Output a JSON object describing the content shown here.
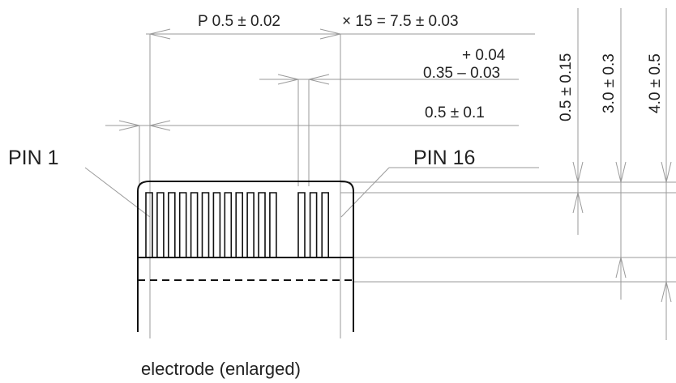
{
  "dimensions": {
    "pitch": "P 0.5 ± 0.02",
    "span": "× 15 = 7.5 ± 0.03",
    "pin_width_tol": "+ 0.04",
    "pin_width": "0.35 – 0.03",
    "end_margin": "0.5 ± 0.1",
    "pin_length": "0.5 ± 0.15",
    "body_height": "3.0 ± 0.3",
    "total_height": "4.0 ± 0.5"
  },
  "labels": {
    "pin_first": "PIN 1",
    "pin_last": "PIN 16",
    "caption": "electrode (enlarged)"
  },
  "pins": {
    "count": 16,
    "visible_left_group": 12,
    "visible_right_group": 3
  }
}
